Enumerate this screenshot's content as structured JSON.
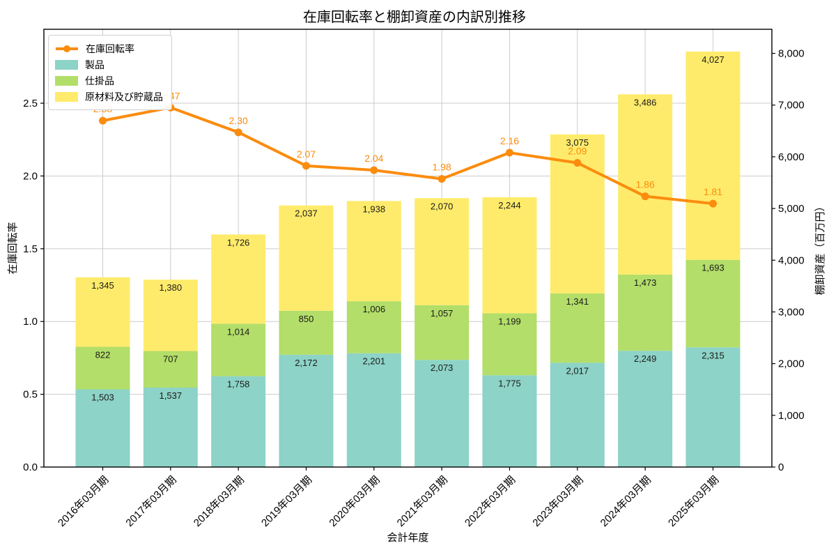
{
  "title": "在庫回転率と棚卸資産の内訳別推移",
  "chart_data": {
    "type": "bar",
    "subtype": "stacked-bar-with-line-combo",
    "title": "在庫回転率と棚卸資産の内訳別推移",
    "xlabel": "会計年度",
    "ylabel_left": "在庫回転率",
    "ylabel_right": "棚卸資産（百万円）",
    "categories": [
      "2016年03月期",
      "2017年03月期",
      "2018年03月期",
      "2019年03月期",
      "2020年03月期",
      "2021年03月期",
      "2022年03月期",
      "2023年03月期",
      "2024年03月期",
      "2025年03月期"
    ],
    "series": [
      {
        "name": "製品",
        "color": "#8dd3c7",
        "values": [
          1503,
          1537,
          1758,
          2172,
          2201,
          2073,
          1775,
          2017,
          2249,
          2315
        ]
      },
      {
        "name": "仕掛品",
        "color": "#b3de69",
        "values": [
          822,
          707,
          1014,
          850,
          1006,
          1057,
          1199,
          1341,
          1473,
          1693
        ]
      },
      {
        "name": "原材料及び貯蔵品",
        "color": "#ffeb6b",
        "values": [
          1345,
          1380,
          1726,
          2037,
          1938,
          2070,
          2244,
          3075,
          3486,
          4027
        ]
      }
    ],
    "line_series": {
      "name": "在庫回転率",
      "color": "#fb8c0e",
      "axis": "left",
      "values": [
        2.38,
        2.47,
        2.3,
        2.07,
        2.04,
        1.98,
        2.16,
        2.09,
        1.86,
        1.81
      ]
    },
    "axes": {
      "left": {
        "ticks": [
          0.0,
          0.5,
          1.0,
          1.5,
          2.0,
          2.5
        ],
        "range": [
          0,
          3.008
        ]
      },
      "right": {
        "ticks": [
          0,
          1000,
          2000,
          3000,
          4000,
          5000,
          6000,
          7000,
          8000
        ],
        "range": [
          0,
          8466
        ]
      }
    },
    "grid": true,
    "legend": {
      "position": "upper-left"
    },
    "colors": {
      "grid": "#cccccc",
      "spine": "#000000",
      "bar_label": "#1a1a1a"
    }
  }
}
